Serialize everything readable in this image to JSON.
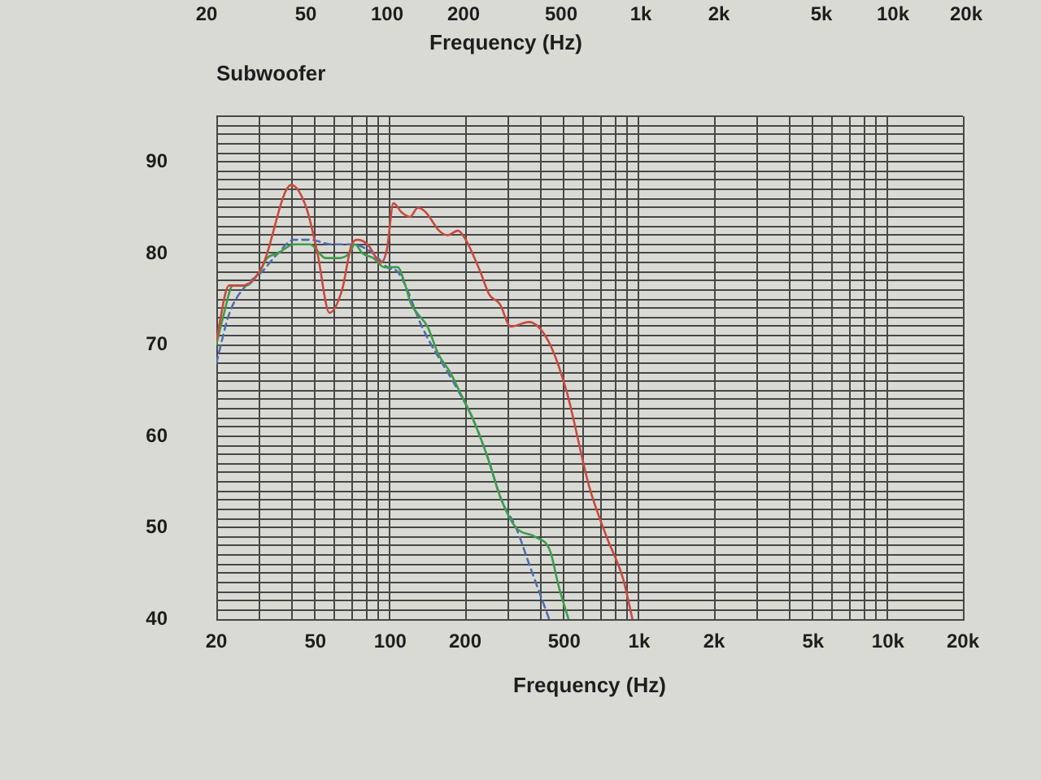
{
  "chart_data": [
    {
      "type": "other",
      "xlabel": "Frequency (Hz)",
      "annotations": [
        "20",
        "50",
        "100",
        "200",
        "500",
        "1k",
        "2k",
        "5k",
        "10k",
        "20k"
      ]
    },
    {
      "type": "line",
      "title": "Subwoofer",
      "xlabel": "Frequency (Hz)",
      "log": "x",
      "grid": true,
      "xlim": [
        20,
        20000
      ],
      "ylim": [
        40,
        95
      ],
      "xticks": [
        20,
        {
          "value": 30,
          "label": null
        },
        {
          "value": 40,
          "label": null
        },
        50,
        {
          "value": 60,
          "label": null
        },
        {
          "value": 70,
          "label": null
        },
        {
          "value": 80,
          "label": null
        },
        {
          "value": 90,
          "label": null
        },
        100,
        200,
        {
          "value": 300,
          "label": null
        },
        {
          "value": 400,
          "label": null
        },
        500,
        {
          "value": 600,
          "label": null
        },
        {
          "value": 700,
          "label": null
        },
        {
          "value": 800,
          "label": null
        },
        {
          "value": 900,
          "label": null
        },
        {
          "value": 1000,
          "label": "1k"
        },
        {
          "value": 2000,
          "label": "2k"
        },
        {
          "value": 3000,
          "label": null
        },
        {
          "value": 4000,
          "label": null
        },
        {
          "value": 5000,
          "label": "5k"
        },
        {
          "value": 6000,
          "label": null
        },
        {
          "value": 7000,
          "label": null
        },
        {
          "value": 8000,
          "label": null
        },
        {
          "value": 9000,
          "label": null
        },
        {
          "value": 10000,
          "label": "10k"
        },
        {
          "value": 20000,
          "label": "20k"
        }
      ],
      "yticks": [
        40,
        {
          "value": 41,
          "label": null
        },
        {
          "value": 42,
          "label": null
        },
        {
          "value": 43,
          "label": null
        },
        {
          "value": 44,
          "label": null
        },
        {
          "value": 45,
          "label": null
        },
        {
          "value": 46,
          "label": null
        },
        {
          "value": 47,
          "label": null
        },
        {
          "value": 48,
          "label": null
        },
        {
          "value": 49,
          "label": null
        },
        50,
        {
          "value": 51,
          "label": null
        },
        {
          "value": 52,
          "label": null
        },
        {
          "value": 53,
          "label": null
        },
        {
          "value": 54,
          "label": null
        },
        {
          "value": 55,
          "label": null
        },
        {
          "value": 56,
          "label": null
        },
        {
          "value": 57,
          "label": null
        },
        {
          "value": 58,
          "label": null
        },
        {
          "value": 59,
          "label": null
        },
        60,
        {
          "value": 61,
          "label": null
        },
        {
          "value": 62,
          "label": null
        },
        {
          "value": 63,
          "label": null
        },
        {
          "value": 64,
          "label": null
        },
        {
          "value": 65,
          "label": null
        },
        {
          "value": 66,
          "label": null
        },
        {
          "value": 67,
          "label": null
        },
        {
          "value": 68,
          "label": null
        },
        {
          "value": 69,
          "label": null
        },
        70,
        {
          "value": 71,
          "label": null
        },
        {
          "value": 72,
          "label": null
        },
        {
          "value": 73,
          "label": null
        },
        {
          "value": 74,
          "label": null
        },
        {
          "value": 75,
          "label": null
        },
        {
          "value": 76,
          "label": null
        },
        {
          "value": 77,
          "label": null
        },
        {
          "value": 78,
          "label": null
        },
        {
          "value": 79,
          "label": null
        },
        80,
        {
          "value": 81,
          "label": null
        },
        {
          "value": 82,
          "label": null
        },
        {
          "value": 83,
          "label": null
        },
        {
          "value": 84,
          "label": null
        },
        {
          "value": 85,
          "label": null
        },
        {
          "value": 86,
          "label": null
        },
        {
          "value": 87,
          "label": null
        },
        {
          "value": 88,
          "label": null
        },
        {
          "value": 89,
          "label": null
        },
        90,
        {
          "value": 91,
          "label": null
        },
        {
          "value": 92,
          "label": null
        },
        {
          "value": 93,
          "label": null
        },
        {
          "value": 94,
          "label": null
        },
        {
          "value": 95,
          "label": null
        }
      ],
      "series": [
        {
          "color": "#c84a3e",
          "x": [
            20,
            22.5,
            25.5,
            30.5,
            40,
            46,
            51,
            57,
            64,
            70,
            74,
            81,
            92,
            97,
            103,
            111,
            120,
            129,
            139,
            157,
            170,
            187,
            201,
            230,
            250,
            275,
            305,
            360,
            430,
            510,
            630,
            740,
            860,
            940
          ],
          "values": [
            70.5,
            76.5,
            76.5,
            78.5,
            87.5,
            85,
            80,
            73.5,
            76,
            81,
            81.5,
            81,
            79,
            80.5,
            85.5,
            84.5,
            84,
            85,
            84.5,
            82.5,
            82,
            82.5,
            81.5,
            78,
            75.5,
            74.5,
            72,
            72.5,
            70.5,
            65,
            54.5,
            49,
            44.5,
            40
          ]
        },
        {
          "color": "#3f9c4a",
          "x": [
            20,
            21.5,
            23.3,
            26.3,
            29.8,
            32,
            35.3,
            41,
            47.5,
            55,
            62,
            68.5,
            72,
            77.5,
            85.5,
            94.5,
            107,
            115,
            121,
            128,
            141,
            156,
            174,
            193,
            214,
            244,
            280,
            320,
            382,
            438,
            476,
            520
          ],
          "values": [
            70,
            73.5,
            76.5,
            76.5,
            78,
            79.5,
            80,
            81,
            81,
            79.5,
            79.5,
            80,
            81,
            80,
            79.5,
            78.5,
            78.5,
            76.5,
            74.5,
            73.5,
            72,
            69,
            67,
            64.5,
            62,
            58,
            53,
            50,
            49,
            47.5,
            43.5,
            40
          ]
        },
        {
          "color": "#4d6fae",
          "line_style": "dashed",
          "x": [
            20,
            22.6,
            26.3,
            30.5,
            35.3,
            41,
            47.5,
            58,
            70,
            85.5,
            97,
            107,
            115,
            134,
            183,
            214,
            244,
            280,
            320,
            367,
            435
          ],
          "values": [
            68,
            73.5,
            76.5,
            78,
            80,
            81.5,
            81.5,
            81,
            81,
            80,
            78.5,
            78,
            76.5,
            72,
            65.5,
            62,
            58,
            53,
            50,
            45.5,
            40
          ]
        }
      ]
    }
  ]
}
